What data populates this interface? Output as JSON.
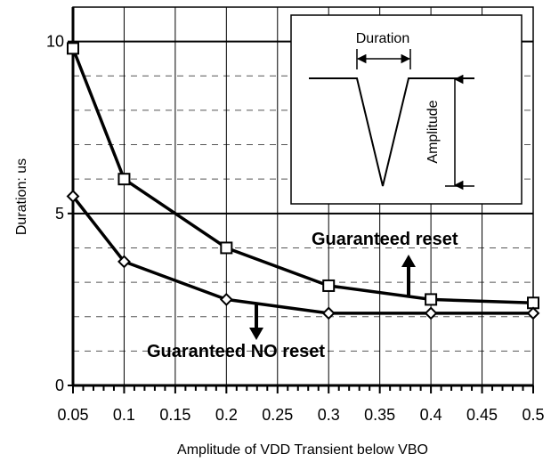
{
  "chart_data": {
    "type": "line",
    "title": "",
    "xlabel": "Amplitude of VDD Transient below VBO",
    "ylabel": "Duration: us",
    "xlim": [
      0.05,
      0.5
    ],
    "ylim": [
      0,
      11
    ],
    "x_ticks": [
      "0.05",
      "0.1",
      "0.15",
      "0.2",
      "0.25",
      "0.3",
      "0.35",
      "0.4",
      "0.45",
      "0.5"
    ],
    "y_ticks": [
      {
        "value": 0,
        "label": "0"
      },
      {
        "value": 5,
        "label": "5"
      },
      {
        "value": 10,
        "label": "10"
      }
    ],
    "grid": {
      "major_y": [
        5,
        10
      ],
      "minor_y_dashed": [
        1,
        2,
        3,
        4,
        6,
        7,
        8,
        9
      ],
      "vertical": true
    },
    "series": [
      {
        "marker": "square",
        "x": [
          0.05,
          0.1,
          0.2,
          0.3,
          0.4,
          0.5
        ],
        "values": [
          9.8,
          6.0,
          4.0,
          2.9,
          2.5,
          2.4
        ]
      },
      {
        "marker": "diamond",
        "x": [
          0.05,
          0.1,
          0.2,
          0.3,
          0.4,
          0.5
        ],
        "values": [
          5.5,
          3.6,
          2.5,
          2.1,
          2.1,
          2.1
        ]
      }
    ],
    "annotations": {
      "reset": "Guaranteed reset",
      "no_reset": "Guaranteed NO reset"
    },
    "inset": {
      "duration_label": "Duration",
      "amplitude_label": "Amplitude"
    }
  }
}
